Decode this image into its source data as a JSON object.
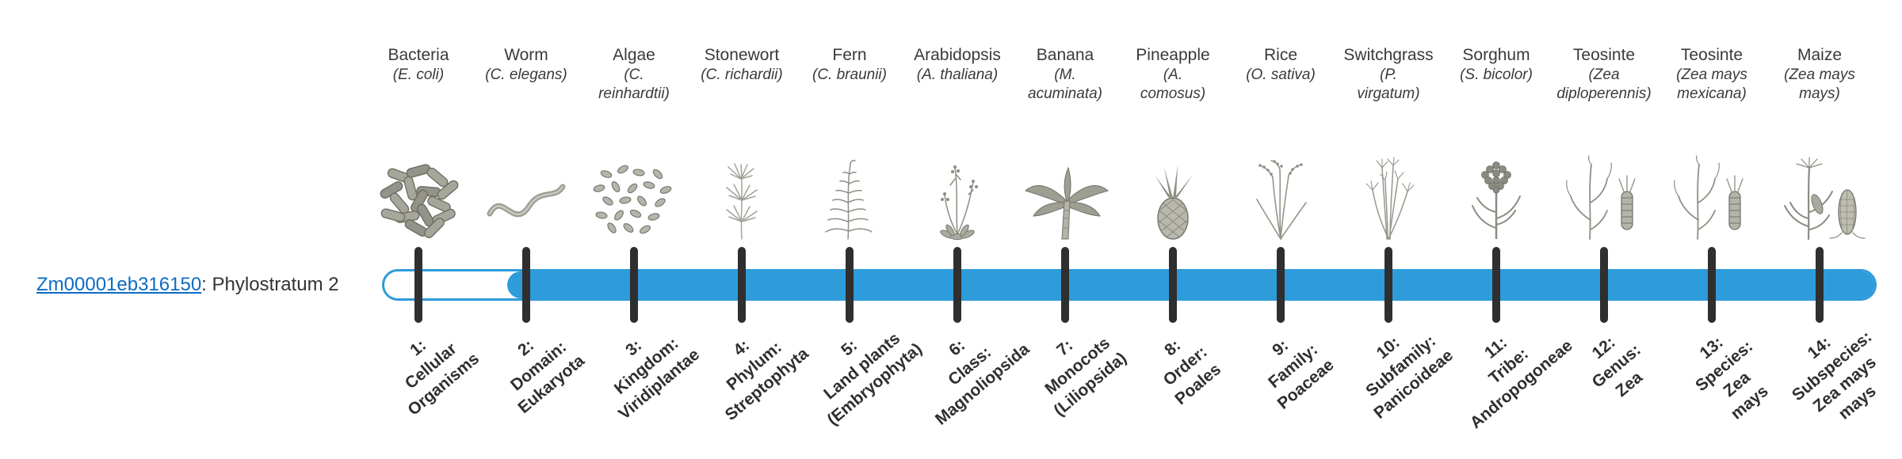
{
  "gene": {
    "id": "Zm00001eb316150",
    "label_suffix": ": Phylostratum 2",
    "phylostratum": 2
  },
  "colors": {
    "bar_fill": "#2E9BDB",
    "bar_empty": "#FFFFFF",
    "tick": "#2F2F2F",
    "link": "#0B6CC4",
    "text": "#333333"
  },
  "timeline": {
    "stratum_count": 14,
    "fill_start_stratum": 2
  },
  "organisms": [
    {
      "name": "Bacteria",
      "sci_lines": [
        "(E. coli)"
      ],
      "icon": "bacteria-icon"
    },
    {
      "name": "Worm",
      "sci_lines": [
        "(C. elegans)"
      ],
      "icon": "worm-icon"
    },
    {
      "name": "Algae",
      "sci_lines": [
        "(C.",
        "reinhardtii)"
      ],
      "icon": "algae-icon"
    },
    {
      "name": "Stonewort",
      "sci_lines": [
        "(C. richardii)"
      ],
      "icon": "stonewort-icon"
    },
    {
      "name": "Fern",
      "sci_lines": [
        "(C. braunii)"
      ],
      "icon": "fern-icon"
    },
    {
      "name": "Arabidopsis",
      "sci_lines": [
        "(A. thaliana)"
      ],
      "icon": "arabidopsis-icon"
    },
    {
      "name": "Banana",
      "sci_lines": [
        "(M.",
        "acuminata)"
      ],
      "icon": "banana-icon"
    },
    {
      "name": "Pineapple",
      "sci_lines": [
        "(A.",
        "comosus)"
      ],
      "icon": "pineapple-icon"
    },
    {
      "name": "Rice",
      "sci_lines": [
        "(O. sativa)"
      ],
      "icon": "rice-icon"
    },
    {
      "name": "Switchgrass",
      "sci_lines": [
        "(P.",
        "virgatum)"
      ],
      "icon": "switchgrass-icon"
    },
    {
      "name": "Sorghum",
      "sci_lines": [
        "(S. bicolor)"
      ],
      "icon": "sorghum-icon"
    },
    {
      "name": "Teosinte",
      "sci_lines": [
        "(Zea",
        "diploperennis)"
      ],
      "icon": "teosinte-icon"
    },
    {
      "name": "Teosinte",
      "sci_lines": [
        "(Zea mays",
        "mexicana)"
      ],
      "icon": "teosinte-icon"
    },
    {
      "name": "Maize",
      "sci_lines": [
        "(Zea mays",
        "mays)"
      ],
      "icon": "maize-icon"
    }
  ],
  "strata": [
    {
      "lines": [
        "1:",
        "Cellular",
        "Organisms"
      ]
    },
    {
      "lines": [
        "2:",
        "Domain:",
        "Eukaryota"
      ]
    },
    {
      "lines": [
        "3:",
        "Kingdom:",
        "Viridiplantae"
      ]
    },
    {
      "lines": [
        "4:",
        "Phylum:",
        "Streptophyta"
      ]
    },
    {
      "lines": [
        "5:",
        "Land plants",
        "(Embryophyta)"
      ]
    },
    {
      "lines": [
        "6:",
        "Class:",
        "Magnoliopsida"
      ]
    },
    {
      "lines": [
        "7:",
        "Monocots",
        "(Liliopsida)"
      ]
    },
    {
      "lines": [
        "8:",
        "Order:",
        "Poales"
      ]
    },
    {
      "lines": [
        "9:",
        "Family:",
        "Poaceae"
      ]
    },
    {
      "lines": [
        "10:",
        "Subfamily:",
        "Panicoideae"
      ]
    },
    {
      "lines": [
        "11:",
        "Tribe:",
        "Andropogoneae"
      ]
    },
    {
      "lines": [
        "12:",
        "Genus:",
        "Zea"
      ]
    },
    {
      "lines": [
        "13:",
        "Species:",
        "Zea",
        "mays"
      ]
    },
    {
      "lines": [
        "14:",
        "Subspecies:",
        "Zea mays",
        "mays"
      ]
    }
  ],
  "chart_data": {
    "type": "bar",
    "title": "Zm00001eb316150: Phylostratum 2",
    "gene_id": "Zm00001eb316150",
    "assigned_phylostratum": 2,
    "x_tick_labels": [
      "1: Cellular Organisms",
      "2: Domain: Eukaryota",
      "3: Kingdom: Viridiplantae",
      "4: Phylum: Streptophyta",
      "5: Land plants (Embryophyta)",
      "6: Class: Magnoliopsida",
      "7: Monocots (Liliopsida)",
      "8: Order: Poales",
      "9: Family: Poaceae",
      "10: Subfamily: Panicoideae",
      "11: Tribe: Andropogoneae",
      "12: Genus: Zea",
      "13: Species: Zea mays",
      "14: Subspecies: Zea mays mays"
    ],
    "bar_filled_strata": [
      2,
      3,
      4,
      5,
      6,
      7,
      8,
      9,
      10,
      11,
      12,
      13,
      14
    ],
    "bar_unfilled_strata": [
      1
    ],
    "representative_organisms": [
      "Bacteria (E. coli)",
      "Worm (C. elegans)",
      "Algae (C. reinhardtii)",
      "Stonewort (C. richardii)",
      "Fern (C. braunii)",
      "Arabidopsis (A. thaliana)",
      "Banana (M. acuminata)",
      "Pineapple (A. comosus)",
      "Rice (O. sativa)",
      "Switchgrass (P. virgatum)",
      "Sorghum (S. bicolor)",
      "Teosinte (Zea diploperennis)",
      "Teosinte (Zea mays mexicana)",
      "Maize (Zea mays mays)"
    ],
    "legend": "none",
    "grid": false
  }
}
